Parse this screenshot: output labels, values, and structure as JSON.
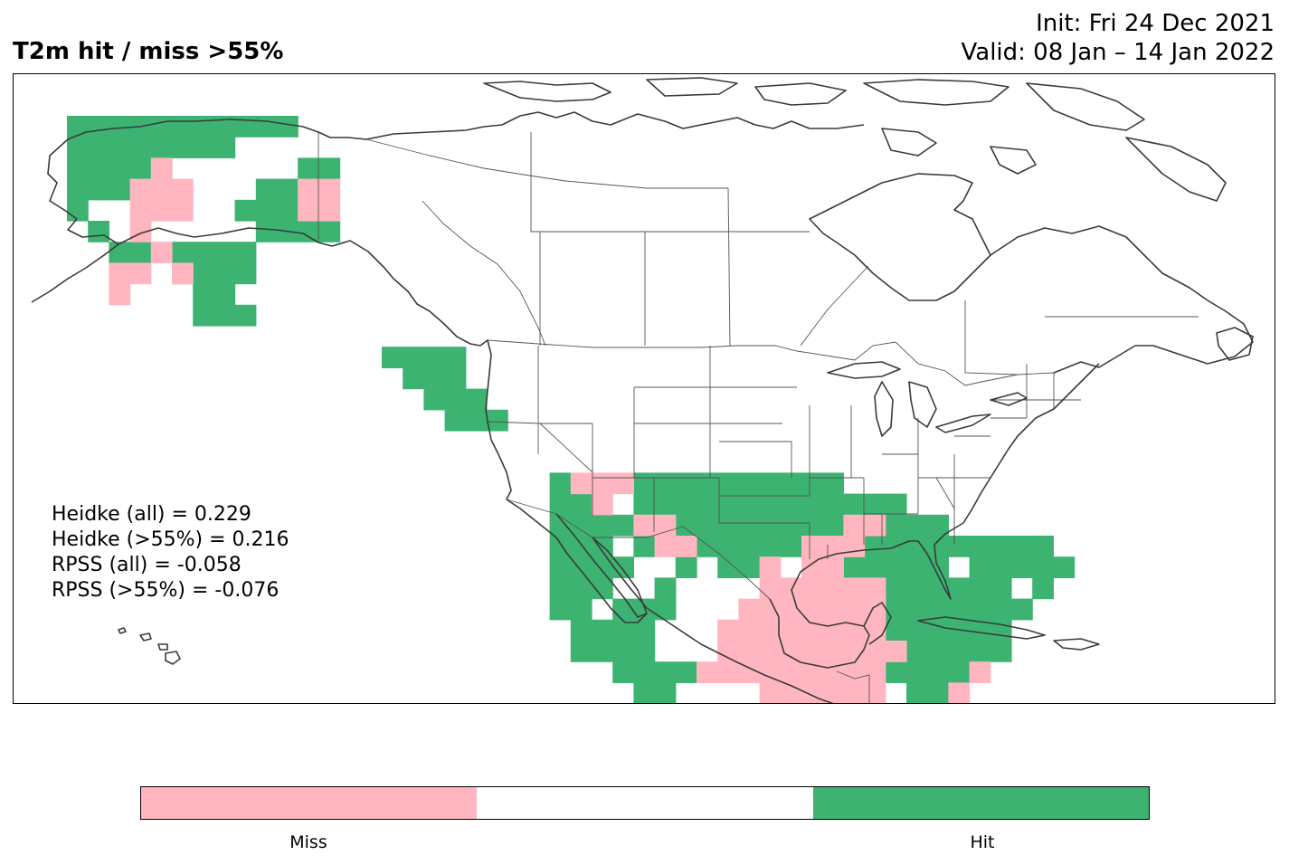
{
  "title": "T2m hit / miss  >55%",
  "init_label": "Init: Fri 24 Dec 2021",
  "valid_label": "Valid: 08 Jan – 14 Jan 2022",
  "stats": [
    "Heidke (all) = 0.229",
    "Heidke (>55%) = 0.216",
    "RPSS (all) = -0.058",
    "RPSS (>55%) = -0.076"
  ],
  "colors": {
    "miss": "#ffb6c1",
    "neutral": "#ffffff",
    "hit": "#3cb371",
    "coast": "#3a3a3a"
  },
  "colorbar": {
    "labels": [
      "Miss",
      "Hit"
    ]
  },
  "grid_cells": [
    {
      "cat": "hit",
      "r": [
        [
          0,
          0,
          11
        ],
        [
          1,
          0,
          4
        ],
        [
          1,
          4,
          8
        ],
        [
          2,
          0,
          5
        ],
        [
          2,
          11,
          13
        ],
        [
          3,
          0,
          3
        ],
        [
          3,
          9,
          11
        ],
        [
          4,
          0,
          1
        ],
        [
          4,
          8,
          11
        ],
        [
          5,
          1,
          2
        ],
        [
          5,
          9,
          13
        ],
        [
          6,
          2,
          3
        ],
        [
          6,
          3,
          4
        ],
        [
          6,
          5,
          6
        ],
        [
          6,
          6,
          9
        ],
        [
          7,
          5,
          9
        ],
        [
          8,
          6,
          8
        ],
        [
          9,
          6,
          9
        ]
      ]
    },
    {
      "cat": "miss",
      "r": [
        [
          2,
          4,
          5
        ],
        [
          3,
          3,
          6
        ],
        [
          3,
          11,
          13
        ],
        [
          4,
          3,
          6
        ],
        [
          4,
          11,
          13
        ],
        [
          5,
          3,
          4
        ],
        [
          6,
          4,
          5
        ],
        [
          7,
          2,
          4
        ],
        [
          7,
          5,
          6
        ],
        [
          8,
          2,
          3
        ]
      ]
    },
    {
      "cat": "hit",
      "r": [
        [
          11,
          15,
          19
        ],
        [
          12,
          16,
          19
        ],
        [
          13,
          17,
          20
        ],
        [
          14,
          18,
          21
        ]
      ]
    },
    {
      "cat": "hit",
      "r": [
        [
          17,
          23,
          24
        ],
        [
          17,
          27,
          37
        ],
        [
          18,
          23,
          25
        ],
        [
          18,
          27,
          40
        ],
        [
          19,
          23,
          27
        ],
        [
          19,
          29,
          37
        ],
        [
          19,
          38,
          42
        ],
        [
          20,
          23,
          26
        ],
        [
          20,
          27,
          28
        ],
        [
          20,
          30,
          35
        ],
        [
          20,
          35,
          37
        ],
        [
          20,
          38,
          42
        ],
        [
          20,
          42,
          47
        ],
        [
          21,
          23,
          27
        ],
        [
          21,
          29,
          30
        ],
        [
          21,
          31,
          33
        ],
        [
          21,
          37,
          42
        ],
        [
          21,
          43,
          48
        ],
        [
          22,
          23,
          26
        ],
        [
          22,
          28,
          29
        ],
        [
          22,
          39,
          45
        ],
        [
          22,
          46,
          47
        ],
        [
          23,
          23,
          25
        ],
        [
          23,
          26,
          29
        ],
        [
          23,
          39,
          46
        ],
        [
          24,
          24,
          28
        ],
        [
          24,
          39,
          45
        ],
        [
          25,
          24,
          28
        ],
        [
          25,
          40,
          45
        ],
        [
          26,
          26,
          30
        ],
        [
          26,
          39,
          43
        ],
        [
          27,
          27,
          29
        ],
        [
          27,
          40,
          42
        ]
      ]
    },
    {
      "cat": "miss",
      "r": [
        [
          17,
          24,
          27
        ],
        [
          18,
          25,
          26
        ],
        [
          19,
          27,
          29
        ],
        [
          19,
          37,
          39
        ],
        [
          20,
          28,
          30
        ],
        [
          20,
          35,
          38
        ],
        [
          21,
          33,
          34
        ],
        [
          21,
          35,
          37
        ],
        [
          22,
          33,
          39
        ],
        [
          23,
          32,
          39
        ],
        [
          24,
          31,
          39
        ],
        [
          25,
          31,
          40
        ],
        [
          26,
          30,
          39
        ],
        [
          26,
          43,
          44
        ],
        [
          27,
          33,
          39
        ],
        [
          27,
          42,
          43
        ],
        [
          28,
          35,
          38
        ],
        [
          28,
          44,
          46
        ],
        [
          29,
          36,
          37
        ],
        [
          29,
          44,
          46
        ]
      ]
    }
  ]
}
